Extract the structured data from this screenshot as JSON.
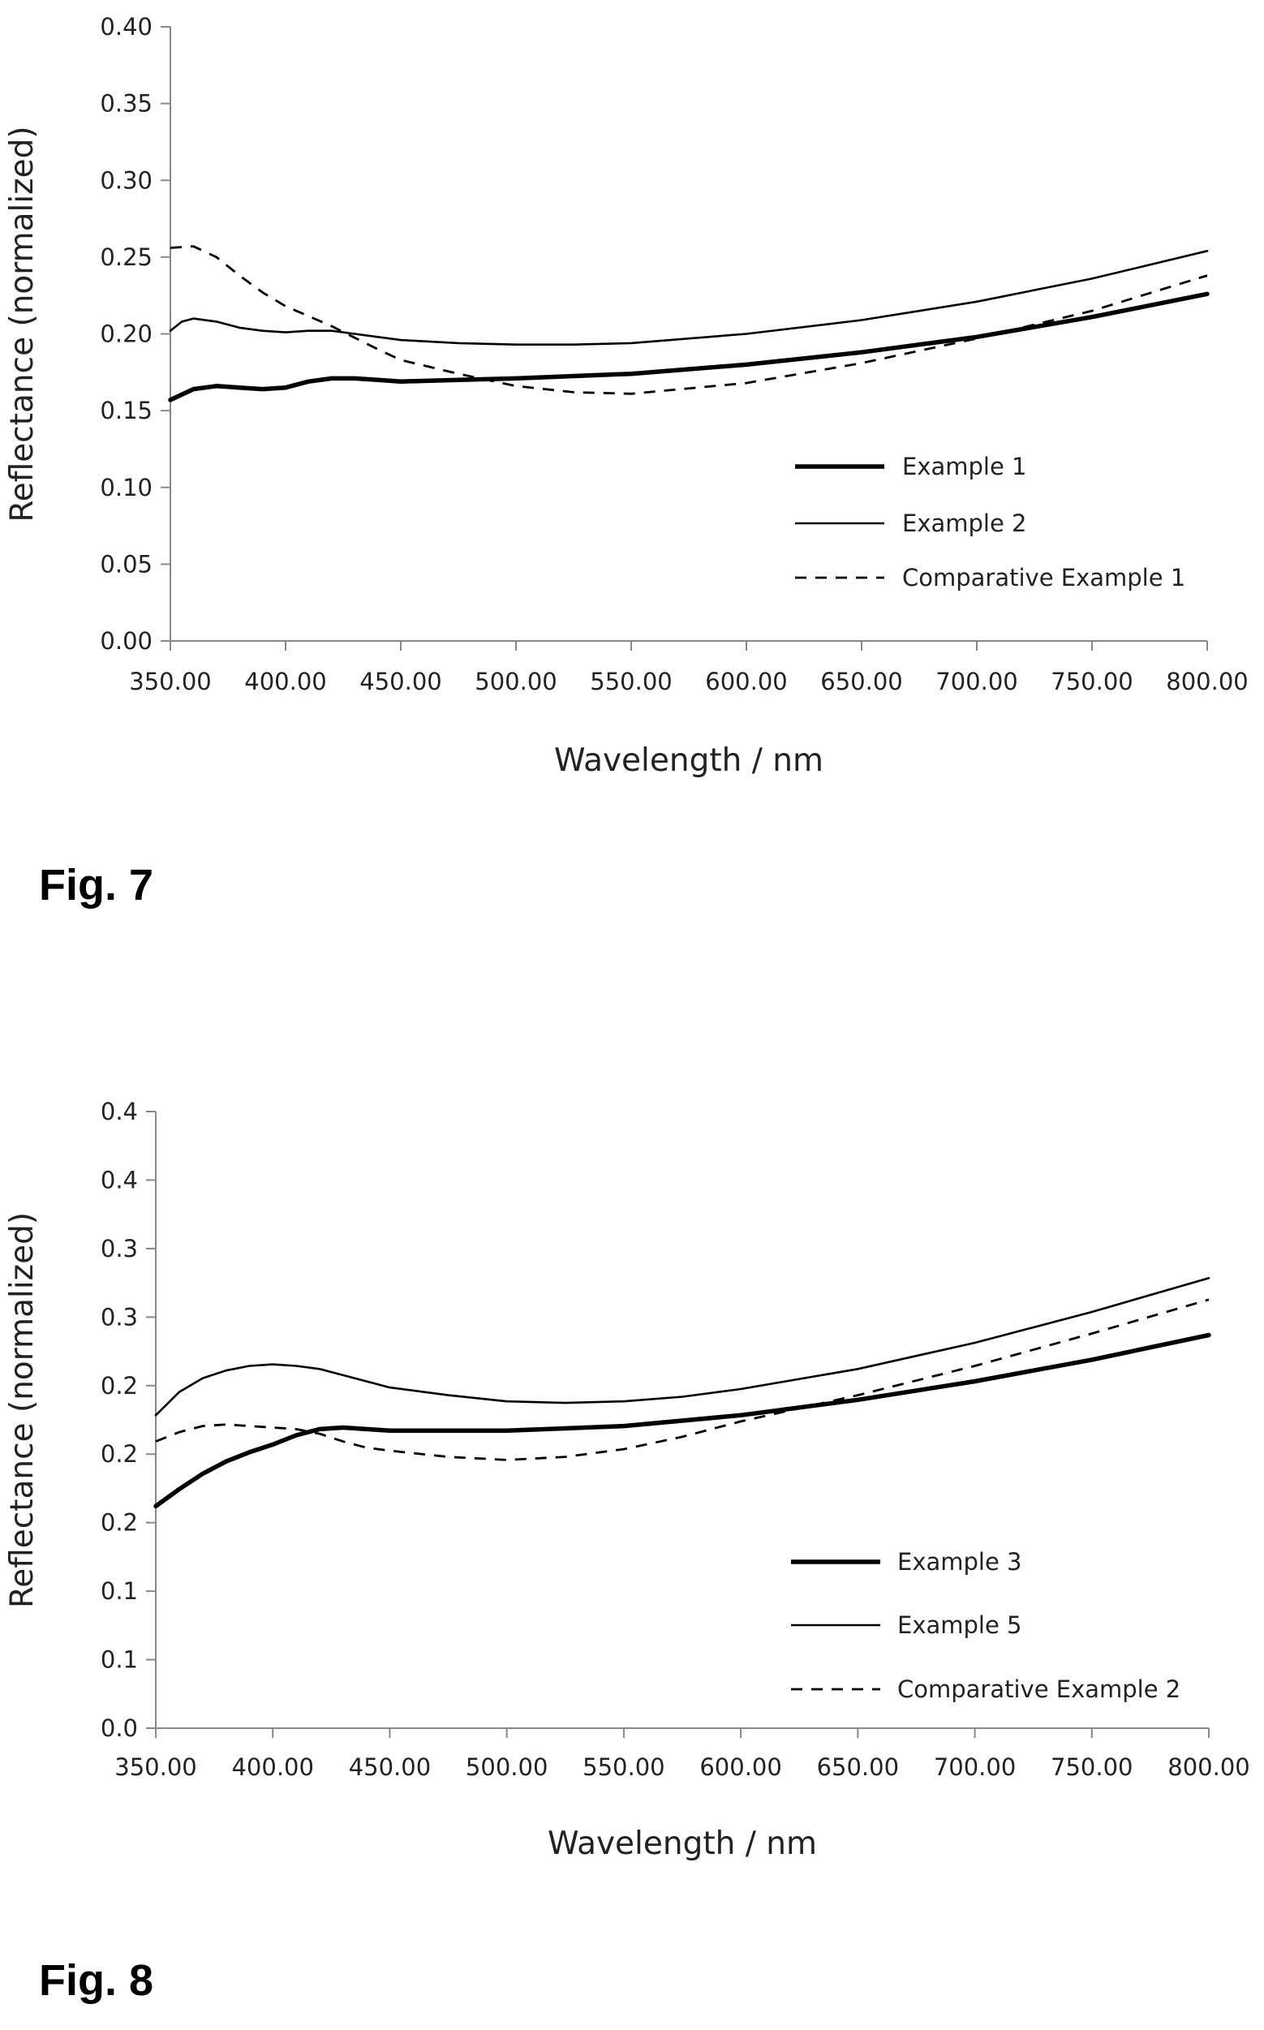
{
  "figures": [
    {
      "label": "Fig. 7"
    },
    {
      "label": "Fig. 8"
    }
  ],
  "chart_data": [
    {
      "type": "line",
      "title": "",
      "xlabel": "Wavelength / nm",
      "ylabel": "Reflectance (normalized)",
      "xlim": [
        350,
        800
      ],
      "ylim": [
        0,
        0.4
      ],
      "x_ticks": [
        "350.00",
        "400.00",
        "450.00",
        "500.00",
        "550.00",
        "600.00",
        "650.00",
        "700.00",
        "750.00",
        "800.00"
      ],
      "y_ticks": [
        "0.00",
        "0.05",
        "0.10",
        "0.15",
        "0.20",
        "0.25",
        "0.30",
        "0.35",
        "0.40"
      ],
      "grid": false,
      "legend_position": "bottom-right",
      "series": [
        {
          "name": "Example 1",
          "style": "thick-solid",
          "x": [
            350,
            360,
            370,
            380,
            390,
            400,
            410,
            420,
            430,
            440,
            450,
            475,
            500,
            550,
            600,
            650,
            700,
            750,
            800
          ],
          "y": [
            0.157,
            0.164,
            0.166,
            0.165,
            0.164,
            0.165,
            0.169,
            0.171,
            0.171,
            0.17,
            0.169,
            0.17,
            0.171,
            0.174,
            0.18,
            0.188,
            0.198,
            0.211,
            0.226
          ]
        },
        {
          "name": "Example 2",
          "style": "thin-solid",
          "x": [
            350,
            355,
            360,
            370,
            380,
            390,
            400,
            410,
            420,
            430,
            440,
            450,
            475,
            500,
            525,
            550,
            600,
            650,
            700,
            750,
            800
          ],
          "y": [
            0.202,
            0.208,
            0.21,
            0.208,
            0.204,
            0.202,
            0.201,
            0.202,
            0.202,
            0.2,
            0.198,
            0.196,
            0.194,
            0.193,
            0.193,
            0.194,
            0.2,
            0.209,
            0.221,
            0.236,
            0.254
          ]
        },
        {
          "name": "Comparative Example 1",
          "style": "dashed",
          "x": [
            350,
            360,
            370,
            380,
            390,
            400,
            420,
            440,
            450,
            475,
            500,
            525,
            550,
            600,
            650,
            700,
            750,
            800
          ],
          "y": [
            0.256,
            0.257,
            0.25,
            0.238,
            0.227,
            0.218,
            0.205,
            0.19,
            0.183,
            0.174,
            0.166,
            0.162,
            0.161,
            0.168,
            0.181,
            0.197,
            0.215,
            0.238
          ]
        }
      ]
    },
    {
      "type": "line",
      "title": "",
      "xlabel": "Wavelength / nm",
      "ylabel": "Reflectance (normalized)",
      "xlim": [
        350,
        800
      ],
      "ylim": [
        0,
        0.4
      ],
      "x_ticks": [
        "350.00",
        "400.00",
        "450.00",
        "500.00",
        "550.00",
        "600.00",
        "650.00",
        "700.00",
        "750.00",
        "800.00"
      ],
      "y_ticks": [
        "0.0",
        "0.1",
        "0.1",
        "0.2",
        "0.2",
        "0.2",
        "0.3",
        "0.3",
        "0.4",
        "0.4"
      ],
      "grid": false,
      "legend_position": "bottom-right",
      "series": [
        {
          "name": "Example 3",
          "style": "thick-solid",
          "x": [
            350,
            360,
            370,
            380,
            390,
            400,
            410,
            420,
            430,
            440,
            450,
            500,
            550,
            600,
            650,
            700,
            750,
            800
          ],
          "y": [
            0.144,
            0.155,
            0.165,
            0.173,
            0.179,
            0.184,
            0.19,
            0.194,
            0.195,
            0.194,
            0.193,
            0.193,
            0.196,
            0.203,
            0.213,
            0.225,
            0.239,
            0.255
          ]
        },
        {
          "name": "Example 5",
          "style": "thin-solid",
          "x": [
            350,
            360,
            370,
            380,
            390,
            400,
            410,
            420,
            430,
            440,
            450,
            475,
            500,
            525,
            550,
            575,
            600,
            650,
            700,
            750,
            800
          ],
          "y": [
            0.203,
            0.218,
            0.227,
            0.232,
            0.235,
            0.236,
            0.235,
            0.233,
            0.229,
            0.225,
            0.221,
            0.216,
            0.212,
            0.211,
            0.212,
            0.215,
            0.22,
            0.233,
            0.25,
            0.27,
            0.292
          ]
        },
        {
          "name": "Comparative Example 2",
          "style": "dashed",
          "x": [
            350,
            360,
            370,
            380,
            390,
            400,
            410,
            420,
            430,
            440,
            450,
            475,
            500,
            525,
            550,
            575,
            600,
            650,
            700,
            750,
            800
          ],
          "y": [
            0.186,
            0.192,
            0.196,
            0.197,
            0.196,
            0.195,
            0.194,
            0.191,
            0.186,
            0.182,
            0.18,
            0.176,
            0.174,
            0.176,
            0.181,
            0.189,
            0.199,
            0.216,
            0.235,
            0.256,
            0.278
          ]
        }
      ]
    }
  ]
}
